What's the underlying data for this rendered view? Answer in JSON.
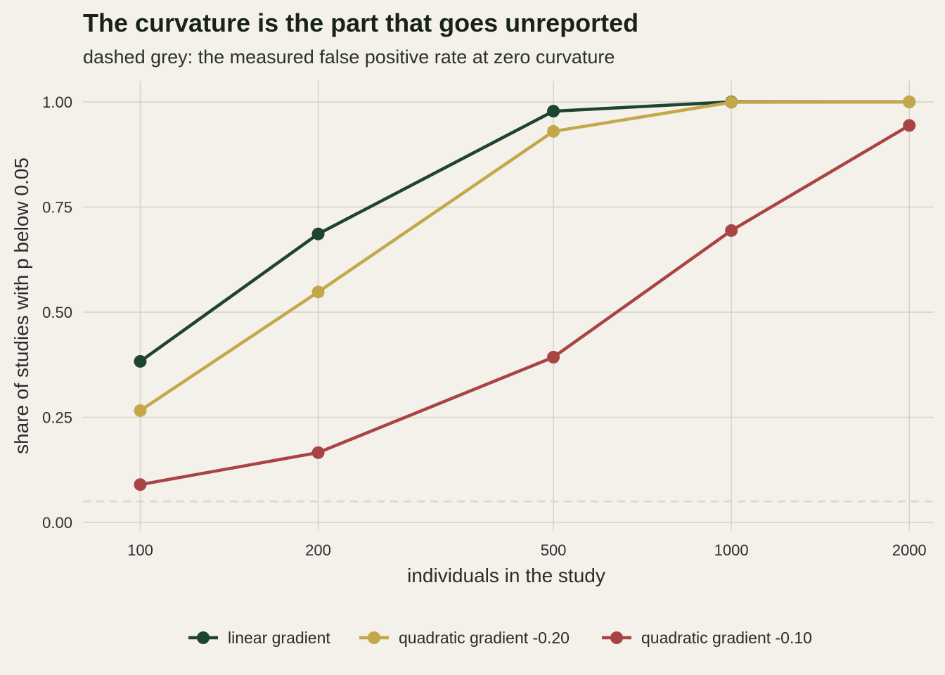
{
  "chart_data": {
    "type": "line",
    "title": "The curvature is the part that goes unreported",
    "subtitle": "dashed grey: the measured false positive rate at zero curvature",
    "xlabel": "individuals in the study",
    "ylabel": "share of studies with p below 0.05",
    "x_scale": "log",
    "x": [
      100,
      200,
      500,
      1000,
      2000
    ],
    "x_tick_labels": [
      "100",
      "200",
      "500",
      "1000",
      "2000"
    ],
    "xlim": [
      80,
      2200
    ],
    "y_ticks": [
      0,
      0.25,
      0.5,
      0.75,
      1.0
    ],
    "y_tick_labels": [
      "0.00",
      "0.25",
      "0.50",
      "0.75",
      "1.00"
    ],
    "ylim": [
      -0.02,
      1.05
    ],
    "reference_line": {
      "y": 0.05,
      "style": "dashed",
      "color": "#d9d6c9"
    },
    "grid": true,
    "legend_position": "bottom",
    "series": [
      {
        "name": "linear gradient",
        "color": "#1f4331",
        "values": [
          0.383,
          0.686,
          0.978,
          1.0,
          1.0
        ]
      },
      {
        "name": "quadratic gradient -0.20",
        "color": "#c3a84a",
        "values": [
          0.266,
          0.548,
          0.93,
          0.999,
          1.0
        ]
      },
      {
        "name": "quadratic gradient -0.10",
        "color": "#a84444",
        "values": [
          0.09,
          0.166,
          0.393,
          0.694,
          0.944
        ]
      }
    ]
  }
}
